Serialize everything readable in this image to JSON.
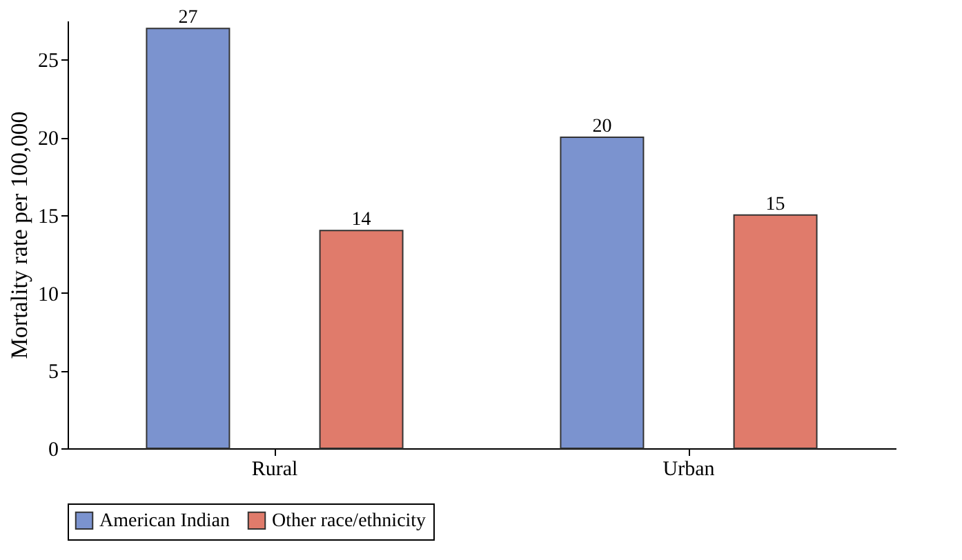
{
  "chart_data": {
    "type": "bar",
    "ylabel": "Mortality rate per 100,000",
    "categories": [
      "Rural",
      "Urban"
    ],
    "series": [
      {
        "name": "American Indian",
        "color": "#7b93cf",
        "values": [
          27,
          20
        ]
      },
      {
        "name": "Other race/ethnicity",
        "color": "#e07b6b",
        "values": [
          14,
          15
        ]
      }
    ],
    "ylim": [
      0,
      27.5
    ],
    "yticks": [
      0,
      5,
      10,
      15,
      20,
      25
    ],
    "data_labels": true,
    "grid": false,
    "legend": "bottom"
  }
}
